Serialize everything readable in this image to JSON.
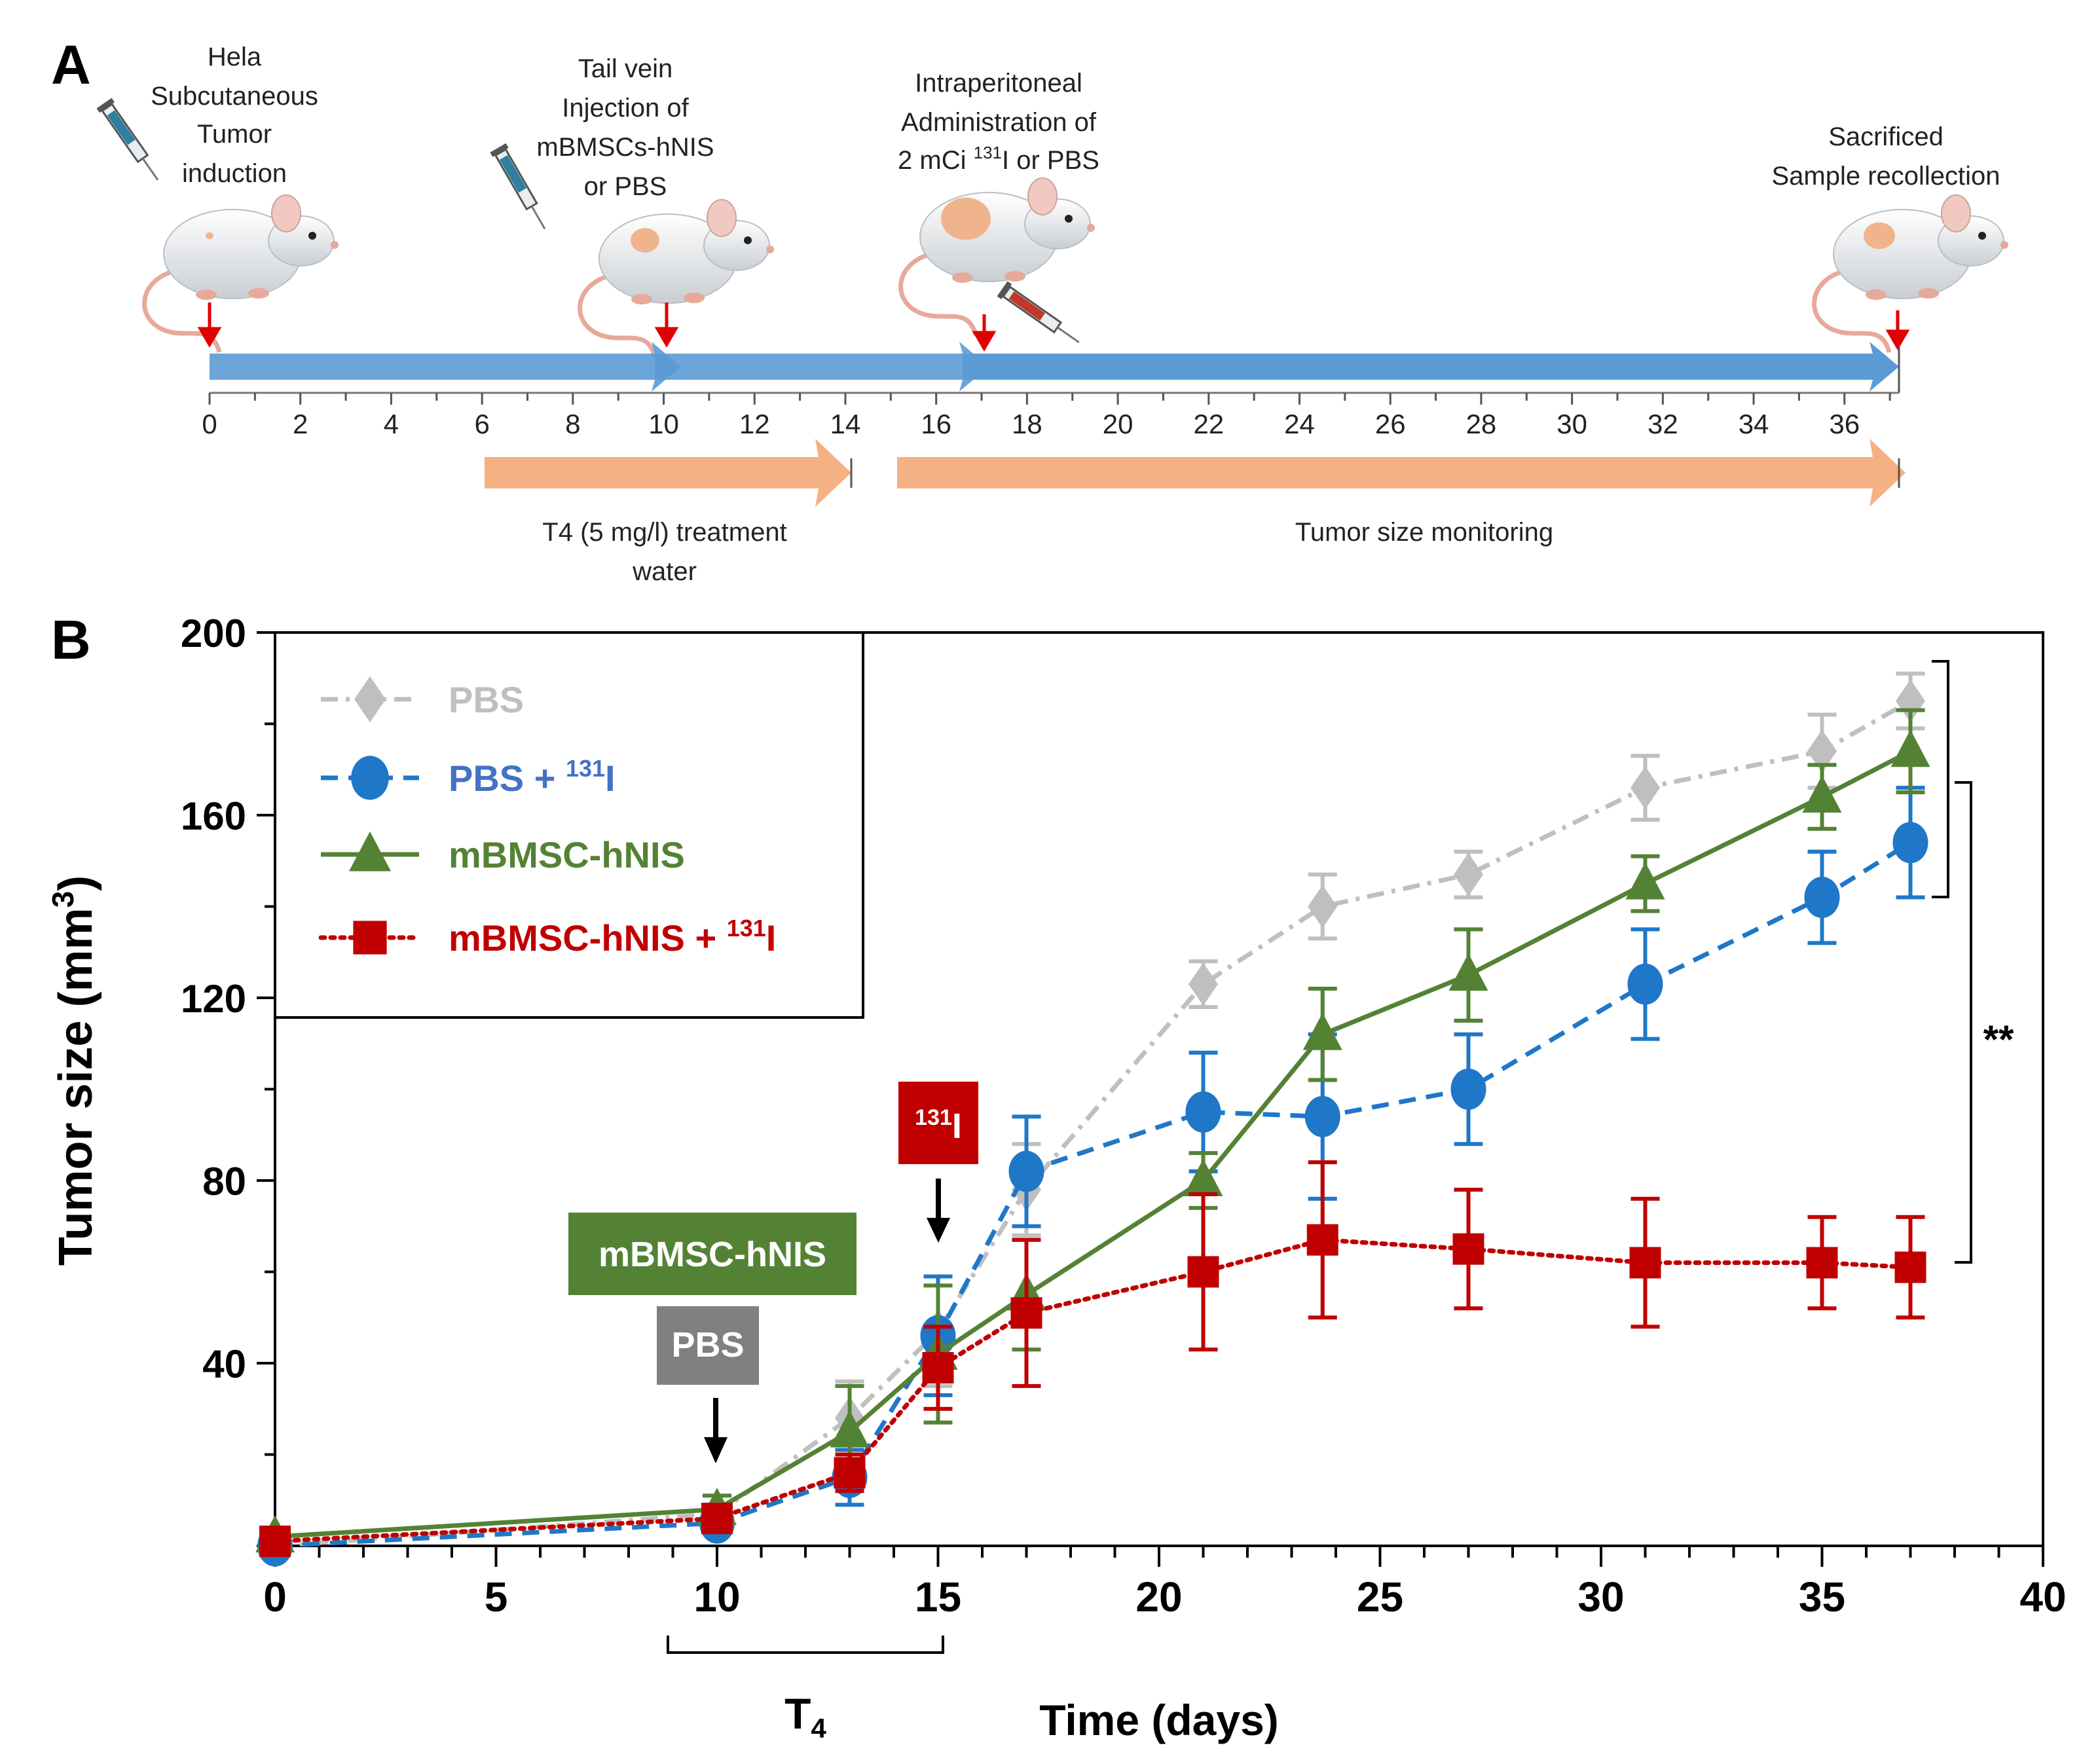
{
  "panel_a": {
    "label": "A",
    "events": {
      "tumor": [
        "Hela",
        "Subcutaneous",
        "Tumor",
        "induction"
      ],
      "injection": [
        "Tail vein",
        "Injection of",
        "mBMSCs-hNIS",
        "or PBS"
      ],
      "admin_l1": "Intraperitoneal",
      "admin_l2": "Administration of",
      "admin_l3_pre": "2 mCi ",
      "admin_l3_sup": "131",
      "admin_l3_post": "I or PBS",
      "sacrifice": [
        "Sacrificed",
        "Sample recollection"
      ]
    },
    "timeline_ticks": [
      "0",
      "2",
      "4",
      "6",
      "8",
      "10",
      "12",
      "14",
      "16",
      "18",
      "20",
      "22",
      "24",
      "26",
      "28",
      "30",
      "32",
      "34",
      "36"
    ],
    "timeline_values": [
      0,
      2,
      4,
      6,
      8,
      10,
      12,
      14,
      16,
      18,
      20,
      22,
      24,
      26,
      28,
      30,
      32,
      34,
      36
    ],
    "t4_label": [
      "T4 (5 mg/l) treatment",
      "water"
    ],
    "monitor_label": "Tumor size monitoring"
  },
  "panel_b": {
    "label": "B",
    "annotations": {
      "i131_box_sup": "131",
      "i131_box_post": "I",
      "mbmsc_box": "mBMSC-hNIS",
      "pbs_box": "PBS",
      "significance": "**",
      "t4_bracket_main": "T",
      "t4_bracket_sub": "4"
    },
    "legend_sup": "131",
    "legend_post": "I"
  },
  "chart_data": {
    "type": "line",
    "xlabel": "Time (days)",
    "ylabel_pre": "Tumor size (mm",
    "ylabel_sup": "3",
    "ylabel_post": ")",
    "xlim": [
      0,
      40
    ],
    "ylim": [
      0,
      200
    ],
    "xticks": [
      0,
      5,
      10,
      15,
      20,
      25,
      30,
      35,
      40
    ],
    "yticks": [
      40,
      80,
      120,
      160,
      200
    ],
    "x": [
      0,
      10,
      13,
      15,
      17,
      21,
      23.7,
      27,
      31,
      35,
      37
    ],
    "series": [
      {
        "name": "PBS",
        "color": "#bfbfbf",
        "marker": "diamond",
        "dash": "dashdot",
        "values": [
          0,
          7,
          28,
          47,
          78,
          123,
          140,
          147,
          166,
          174,
          185
        ],
        "errors": [
          0,
          2,
          8,
          12,
          10,
          5,
          7,
          5,
          7,
          8,
          6
        ]
      },
      {
        "name": "PBS + 131I",
        "color": "#1f77c8",
        "label_color": "#4472c4",
        "marker": "circle",
        "dash": "dashed",
        "values": [
          0,
          5,
          15,
          46,
          82,
          95,
          94,
          100,
          123,
          142,
          154
        ],
        "errors": [
          0,
          2,
          6,
          13,
          12,
          13,
          18,
          12,
          12,
          10,
          12
        ]
      },
      {
        "name": "mBMSC-hNIS",
        "color": "#548235",
        "marker": "triangle",
        "dash": "solid",
        "values": [
          2,
          8,
          25,
          42,
          55,
          80,
          112,
          125,
          145,
          164,
          174
        ],
        "errors": [
          0,
          3,
          10,
          15,
          12,
          6,
          10,
          10,
          6,
          7,
          9
        ]
      },
      {
        "name": "mBMSC-hNIS + 131I",
        "color": "#c00000",
        "marker": "square",
        "dash": "dotted",
        "values": [
          1,
          6,
          16,
          39,
          51,
          60,
          67,
          65,
          62,
          62,
          61
        ],
        "errors": [
          0,
          2,
          4,
          9,
          16,
          17,
          17,
          13,
          14,
          10,
          11
        ]
      }
    ]
  }
}
